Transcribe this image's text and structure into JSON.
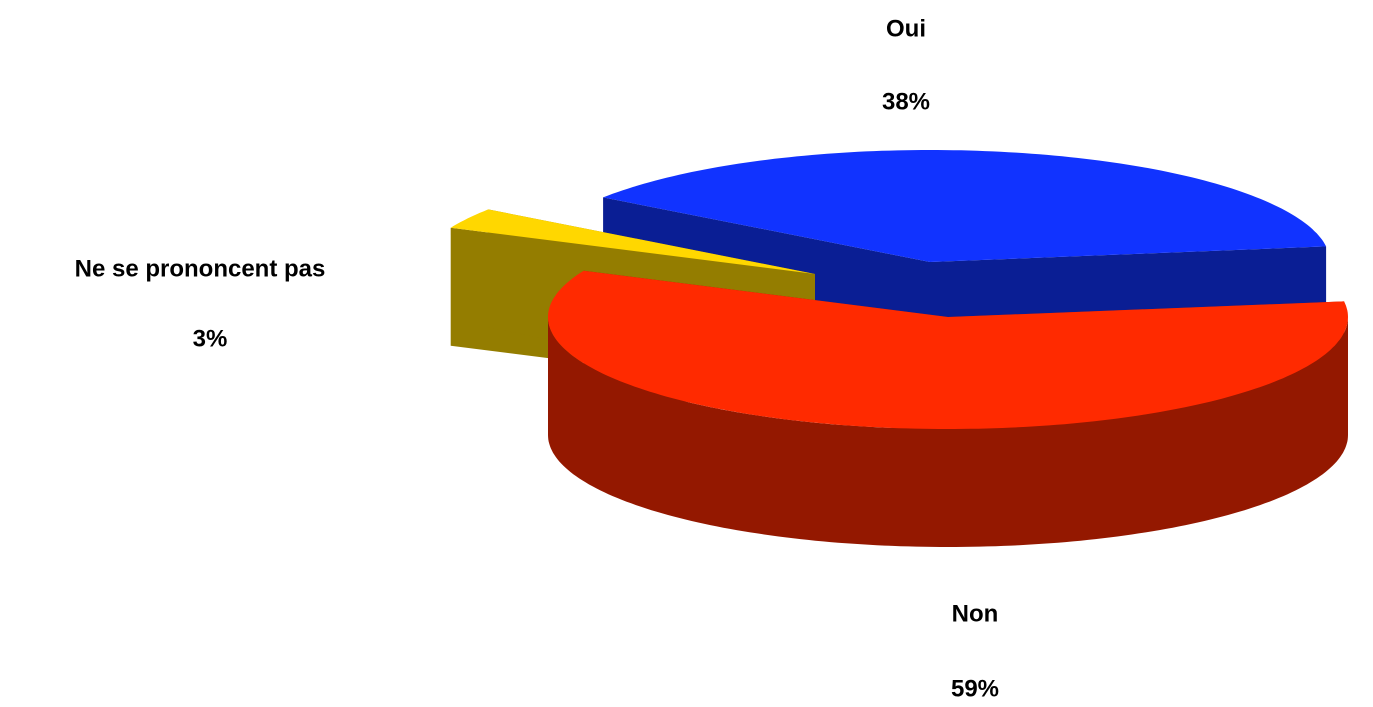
{
  "chart_data": {
    "type": "pie",
    "categories": [
      "Oui",
      "Non",
      "Ne se prononcent pas"
    ],
    "values": [
      38,
      59,
      3
    ],
    "value_labels": [
      "38%",
      "59%",
      "3%"
    ],
    "colors": [
      "#1133ff",
      "#ff2a00",
      "#ffd700"
    ]
  }
}
